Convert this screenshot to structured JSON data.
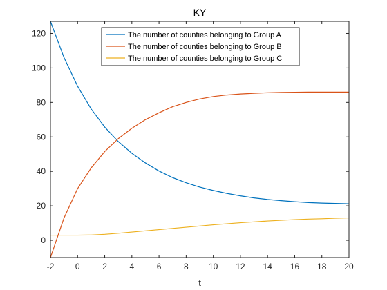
{
  "chart_data": {
    "type": "line",
    "title": "KY",
    "xlabel": "t",
    "ylabel": "",
    "xlim": [
      -2,
      20
    ],
    "ylim": [
      -10,
      127
    ],
    "xticks": [
      -2,
      0,
      2,
      4,
      6,
      8,
      10,
      12,
      14,
      16,
      18,
      20
    ],
    "yticks": [
      0,
      20,
      40,
      60,
      80,
      100,
      120
    ],
    "grid": false,
    "legend_position": "top",
    "x": [
      -2,
      -1,
      0,
      1,
      2,
      3,
      4,
      5,
      6,
      7,
      8,
      9,
      10,
      11,
      12,
      13,
      14,
      15,
      16,
      17,
      18,
      19,
      20
    ],
    "series": [
      {
        "name": "The number of counties belonging to Group A",
        "color": "#0072BD",
        "values": [
          127,
          106,
          89.4,
          76.2,
          65.7,
          57.3,
          50.5,
          44.9,
          40.2,
          36.4,
          33.4,
          30.9,
          28.9,
          27.2,
          25.8,
          24.6,
          23.7,
          23.0,
          22.4,
          21.9,
          21.6,
          21.4,
          21.2
        ]
      },
      {
        "name": "The number of counties belonging to Group B",
        "color": "#D95319",
        "values": [
          -10,
          13,
          30,
          42,
          51.5,
          59,
          65,
          70,
          74,
          77.5,
          80,
          82,
          83.4,
          84.3,
          84.9,
          85.3,
          85.6,
          85.8,
          85.9,
          86.0,
          86.0,
          86.0,
          86.0
        ]
      },
      {
        "name": "The number of counties belonging to Group C",
        "color": "#EDB120",
        "values": [
          3.0,
          3.0,
          3.0,
          3.1,
          3.5,
          4.1,
          4.8,
          5.5,
          6.2,
          6.9,
          7.6,
          8.3,
          9.0,
          9.6,
          10.2,
          10.7,
          11.2,
          11.6,
          12.0,
          12.3,
          12.5,
          12.8,
          13.0
        ]
      }
    ]
  }
}
